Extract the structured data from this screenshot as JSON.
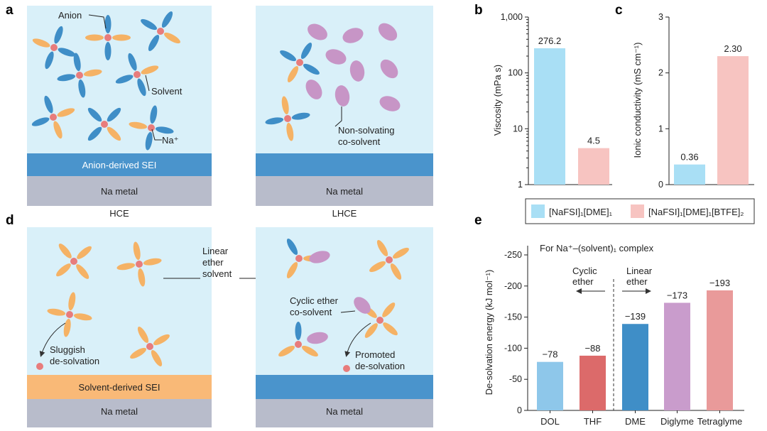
{
  "panels": {
    "a": "a",
    "b": "b",
    "c": "c",
    "d": "d",
    "e": "e"
  },
  "panel_a": {
    "left": {
      "anion_label": "Anion",
      "solvent_label": "Solvent",
      "na_label": "Na⁺",
      "sei_label": "Anion-derived SEI",
      "metal_label": "Na metal",
      "caption": "HCE"
    },
    "right": {
      "cosolvent_label_1": "Non-solvating",
      "cosolvent_label_2": "co-solvent",
      "metal_label": "Na metal",
      "caption": "LHCE"
    }
  },
  "panel_d": {
    "linear_label_1": "Linear",
    "linear_label_2": "ether",
    "linear_label_3": "solvent",
    "left": {
      "sluggish_1": "Sluggish",
      "sluggish_2": "de-solvation",
      "sei_label": "Solvent-derived SEI",
      "metal_label": "Na metal"
    },
    "right": {
      "cyclic_1": "Cyclic ether",
      "cyclic_2": "co-solvent",
      "promoted_1": "Promoted",
      "promoted_2": "de-solvation",
      "metal_label": "Na metal"
    }
  },
  "legend": {
    "item1": "[NaFSI]₁[DME]₁",
    "item2": "[NaFSI]₁[DME]₁[BTFE]₂"
  },
  "colors": {
    "bg_cell": "#d9f0f9",
    "blue_ellipse": "#3f8ec7",
    "orange_ellipse": "#f5b265",
    "purple_ellipse": "#c795c6",
    "na_ion": "#e87c7c",
    "sei_blue": "#4a94cc",
    "sei_orange": "#f9b977",
    "metal_gray": "#b8bccb",
    "bar_light_blue": "#a9dff5",
    "bar_pink": "#f7c4c1"
  },
  "chart_data": [
    {
      "id": "b",
      "type": "bar",
      "scale": "log",
      "categories": [
        "[NaFSI]₁[DME]₁",
        "[NaFSI]₁[DME]₁[BTFE]₂"
      ],
      "values": [
        276.2,
        4.5
      ],
      "value_labels": [
        "276.2",
        "4.5"
      ],
      "ylabel": "Viscosity (mPa s)",
      "ylim": [
        1,
        1000
      ],
      "yticks": [
        1,
        10,
        100,
        1000
      ],
      "ytick_labels": [
        "1",
        "10",
        "100",
        "1,000"
      ]
    },
    {
      "id": "c",
      "type": "bar",
      "categories": [
        "[NaFSI]₁[DME]₁",
        "[NaFSI]₁[DME]₁[BTFE]₂"
      ],
      "values": [
        0.36,
        2.3
      ],
      "value_labels": [
        "0.36",
        "2.30"
      ],
      "ylabel": "Ionic conductivity (mS cm⁻¹)",
      "ylim": [
        0,
        3
      ],
      "yticks": [
        0,
        1,
        2,
        3
      ],
      "ytick_labels": [
        "0",
        "1",
        "2",
        "3"
      ]
    },
    {
      "id": "e",
      "type": "bar",
      "title": "For Na⁺–(solvent)₁ complex",
      "categories": [
        "DOL",
        "THF",
        "DME",
        "Diglyme",
        "Tetraglyme"
      ],
      "values": [
        -78,
        -88,
        -139,
        -173,
        -193
      ],
      "value_labels": [
        "−78",
        "−88",
        "−139",
        "−173",
        "−193"
      ],
      "colors": [
        "#8ec7ea",
        "#dc6a6a",
        "#3f8ec7",
        "#c99ccc",
        "#e99a9a"
      ],
      "ylabel": "De-solvation energy (kJ mol⁻¹)",
      "ylim": [
        0,
        -250
      ],
      "yticks": [
        0,
        -50,
        -100,
        -150,
        -200,
        -250
      ],
      "ytick_labels": [
        "0",
        "-50",
        "-100",
        "-150",
        "-200",
        "-250"
      ],
      "annotations": {
        "cyclic_1": "Cyclic",
        "cyclic_2": "ether",
        "linear_1": "Linear",
        "linear_2": "ether"
      }
    }
  ]
}
